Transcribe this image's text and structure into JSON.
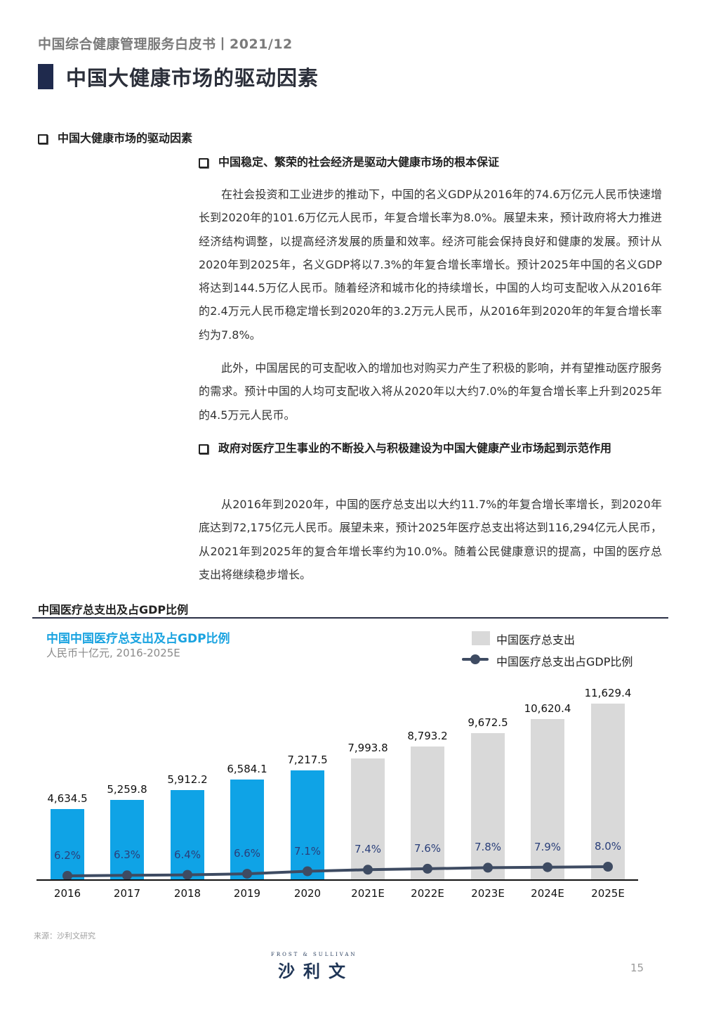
{
  "header": {
    "doc_title": "中国综合健康管理服务白皮书丨2021/12",
    "page_title": "中国大健康市场的驱动因素"
  },
  "section": {
    "heading": "中国大健康市场的驱动因素",
    "subsections": [
      {
        "heading": "中国稳定、繁荣的社会经济是驱动大健康市场的根本保证",
        "paragraphs": [
          "在社会投资和工业进步的推动下，中国的名义GDP从2016年的74.6万亿元人民币快速增长到2020年的101.6万亿元人民币，年复合增长率为8.0%。展望未来，预计政府将大力推进经济结构调整，以提高经济发展的质量和效率。经济可能会保持良好和健康的发展。预计从2020年到2025年，名义GDP将以7.3%的年复合增长率增长。预计2025年中国的名义GDP将达到144.5万亿人民币。随着经济和城市化的持续增长，中国的人均可支配收入从2016年的2.4万元人民币稳定增长到2020年的3.2万元人民币，从2016年到2020年的年复合增长率约为7.8%。",
          "此外，中国居民的可支配收入的增加也对购买力产生了积极的影响，并有望推动医疗服务的需求。预计中国的人均可支配收入将从2020年以大约7.0%的年复合增长率上升到2025年的4.5万元人民币。"
        ]
      },
      {
        "heading": "政府对医疗卫生事业的不断投入与积极建设为中国大健康产业市场起到示范作用",
        "paragraphs": [
          "从2016年到2020年，中国的医疗总支出以大约11.7%的年复合增长率增长，到2020年底达到72,175亿元人民币。展望未来，预计2025年医疗总支出将达到116,294亿元人民币，从2021年到2025年的复合年增长率约为10.0%。随着公民健康意识的提高，中国的医疗总支出将继续稳步增长。"
        ]
      }
    ]
  },
  "chart_section": {
    "heading": "中国医疗总支出及占GDP比例",
    "source": "来源：沙利文研究"
  },
  "chart_data": {
    "type": "bar",
    "title": "中国中国医疗总支出及占GDP比例",
    "subtitle": "人民币十亿元, 2016-2025E",
    "xlabel": "",
    "ylabel": "",
    "categories": [
      "2016",
      "2017",
      "2018",
      "2019",
      "2020",
      "2021E",
      "2022E",
      "2023E",
      "2024E",
      "2025E"
    ],
    "series": [
      {
        "name": "中国医疗总支出",
        "type": "bar",
        "values": [
          4634.5,
          5259.8,
          5912.2,
          6584.1,
          7217.5,
          7993.8,
          8793.2,
          9672.5,
          10620.4,
          11629.4
        ],
        "labels": [
          "4,634.5",
          "5,259.8",
          "5,912.2",
          "6,584.1",
          "7,217.5",
          "7,993.8",
          "8,793.2",
          "9,672.5",
          "10,620.4",
          "11,629.4"
        ],
        "colors": {
          "actual": "#0fa3e6",
          "estimate": "#d9d9d9"
        }
      },
      {
        "name": "中国医疗总支出占GDP比例",
        "type": "line",
        "unit": "%",
        "values": [
          6.2,
          6.3,
          6.4,
          6.6,
          7.1,
          7.4,
          7.6,
          7.8,
          7.9,
          8.0
        ],
        "labels": [
          "6.2%",
          "6.3%",
          "6.4%",
          "6.6%",
          "7.1%",
          "7.4%",
          "7.6%",
          "7.8%",
          "7.9%",
          "8.0%"
        ],
        "color": "#3e4b62"
      }
    ],
    "legend": {
      "position": "top-right",
      "entries": [
        "中国医疗总支出",
        "中国医疗总支出占GDP比例"
      ]
    },
    "grid": false,
    "ylim": [
      0,
      12000
    ]
  },
  "footer": {
    "logo_en": "FROST & SULLIVAN",
    "logo_cn": "沙利文",
    "page_number": "15"
  }
}
